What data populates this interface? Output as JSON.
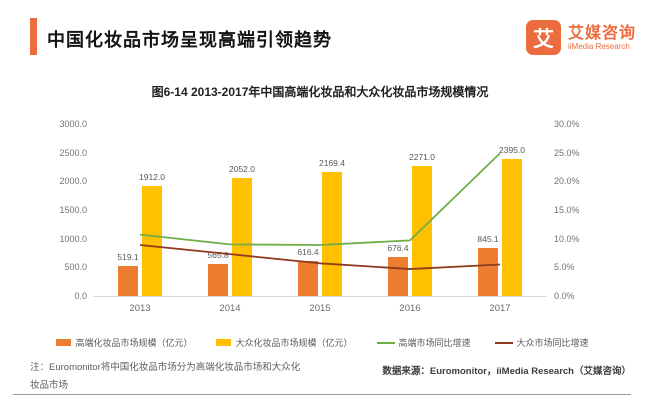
{
  "header": {
    "title": "中国化妆品市场呈现高端引领趋势"
  },
  "logo": {
    "icon_char": "艾",
    "name_cn": "艾媒咨询",
    "name_en": "iiMedia Research"
  },
  "colors": {
    "accent_orange": "#EC6C3F",
    "bar_highend": "#ED7D31",
    "bar_mass": "#FFC000",
    "line_highend_growth": "#70AD47",
    "line_mass_growth": "#8E3B1E"
  },
  "chart_data": {
    "type": "bar+line",
    "title": "图6-14 2013-2017年中国高端化妆品和大众化妆品市场规模情况",
    "categories": [
      "2013",
      "2014",
      "2015",
      "2016",
      "2017"
    ],
    "bar_series": [
      {
        "name": "高端化妆品市场规模（亿元）",
        "color": "#ED7D31",
        "axis": "left",
        "values": [
          519.1,
          565.8,
          616.4,
          676.4,
          845.1
        ],
        "labels": [
          "519.1",
          "565.8",
          "616.4",
          "676.4",
          "845.1"
        ]
      },
      {
        "name": "大众化妆品市场规模（亿元）",
        "color": "#FFC000",
        "axis": "left",
        "values": [
          1912.0,
          2052.0,
          2169.4,
          2271.0,
          2395.0
        ],
        "labels": [
          "1912.0",
          "2052.0",
          "2169.4",
          "2271.0",
          "2395.0"
        ]
      }
    ],
    "line_series": [
      {
        "name": "高端市场同比增速",
        "color": "#70AD47",
        "axis": "right",
        "values": [
          10.7,
          9.0,
          8.9,
          9.7,
          24.9
        ]
      },
      {
        "name": "大众市场同比增速",
        "color": "#8E3B1E",
        "axis": "right",
        "values": [
          8.9,
          7.3,
          5.7,
          4.7,
          5.5
        ]
      }
    ],
    "left_axis": {
      "min": 0,
      "max": 3000,
      "ticks": [
        "0.0",
        "500.0",
        "1000.0",
        "1500.0",
        "2000.0",
        "2500.0",
        "3000.0"
      ]
    },
    "right_axis": {
      "min": 0,
      "max": 30,
      "ticks": [
        "0.0%",
        "5.0%",
        "10.0%",
        "15.0%",
        "20.0%",
        "25.0%",
        "30.0%"
      ]
    },
    "grid": false,
    "legend_position": "bottom"
  },
  "footer": {
    "note": "注：Euromonitor将中国化妆品市场分为高端化妆品市场和大众化妆品市场",
    "source": "数据来源：Euromonitor，iiMedia Research（艾媒咨询）"
  }
}
